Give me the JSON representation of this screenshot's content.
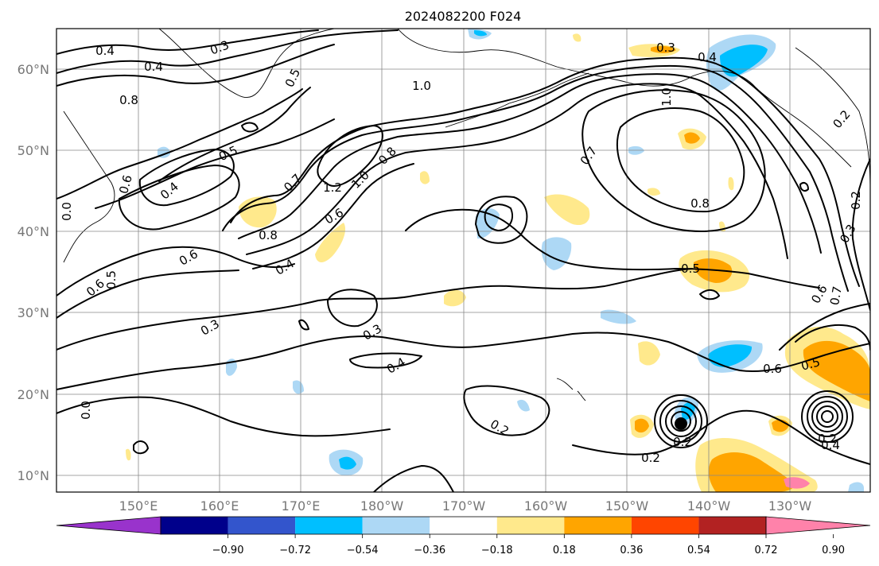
{
  "title": "2024082200 F024",
  "lon_labels": [
    "150°E",
    "160°E",
    "170°E",
    "180°W",
    "170°W",
    "160°W",
    "150°W",
    "140°W",
    "130°W"
  ],
  "lat_labels": [
    "60°N",
    "50°N",
    "40°N",
    "30°N",
    "20°N",
    "10°N"
  ],
  "colorbar": {
    "ticks": [
      "−0.90",
      "−0.72",
      "−0.54",
      "−0.36",
      "−0.18",
      "0.18",
      "0.36",
      "0.54",
      "0.72",
      "0.90"
    ],
    "colors": [
      "#9933cc",
      "#00008b",
      "#3355cc",
      "#00bfff",
      "#add8f5",
      "#ffffff",
      "#ffe98c",
      "#ffa500",
      "#ff4500",
      "#b22222",
      "#ff82aa"
    ]
  },
  "contour_labels": [
    "0.4",
    "0.3",
    "0.4",
    "0.5",
    "1.0",
    "0.8",
    "0.5",
    "0.4",
    "0.6",
    "0.7",
    "1.2",
    "1.0",
    "0.8",
    "0.6",
    "0.8",
    "0.4",
    "0.6",
    "0.5",
    "0.6",
    "0.3",
    "0.3",
    "0.4",
    "0.3",
    "0.4",
    "0.7",
    "1.0",
    "0.8",
    "0.5",
    "0.6",
    "0.5",
    "0.2",
    "0.2",
    "0.2",
    "0.2",
    "0.2",
    "0.3",
    "0.6",
    "0.7",
    "0.2",
    "0.0",
    "0.4",
    "0.0"
  ]
}
